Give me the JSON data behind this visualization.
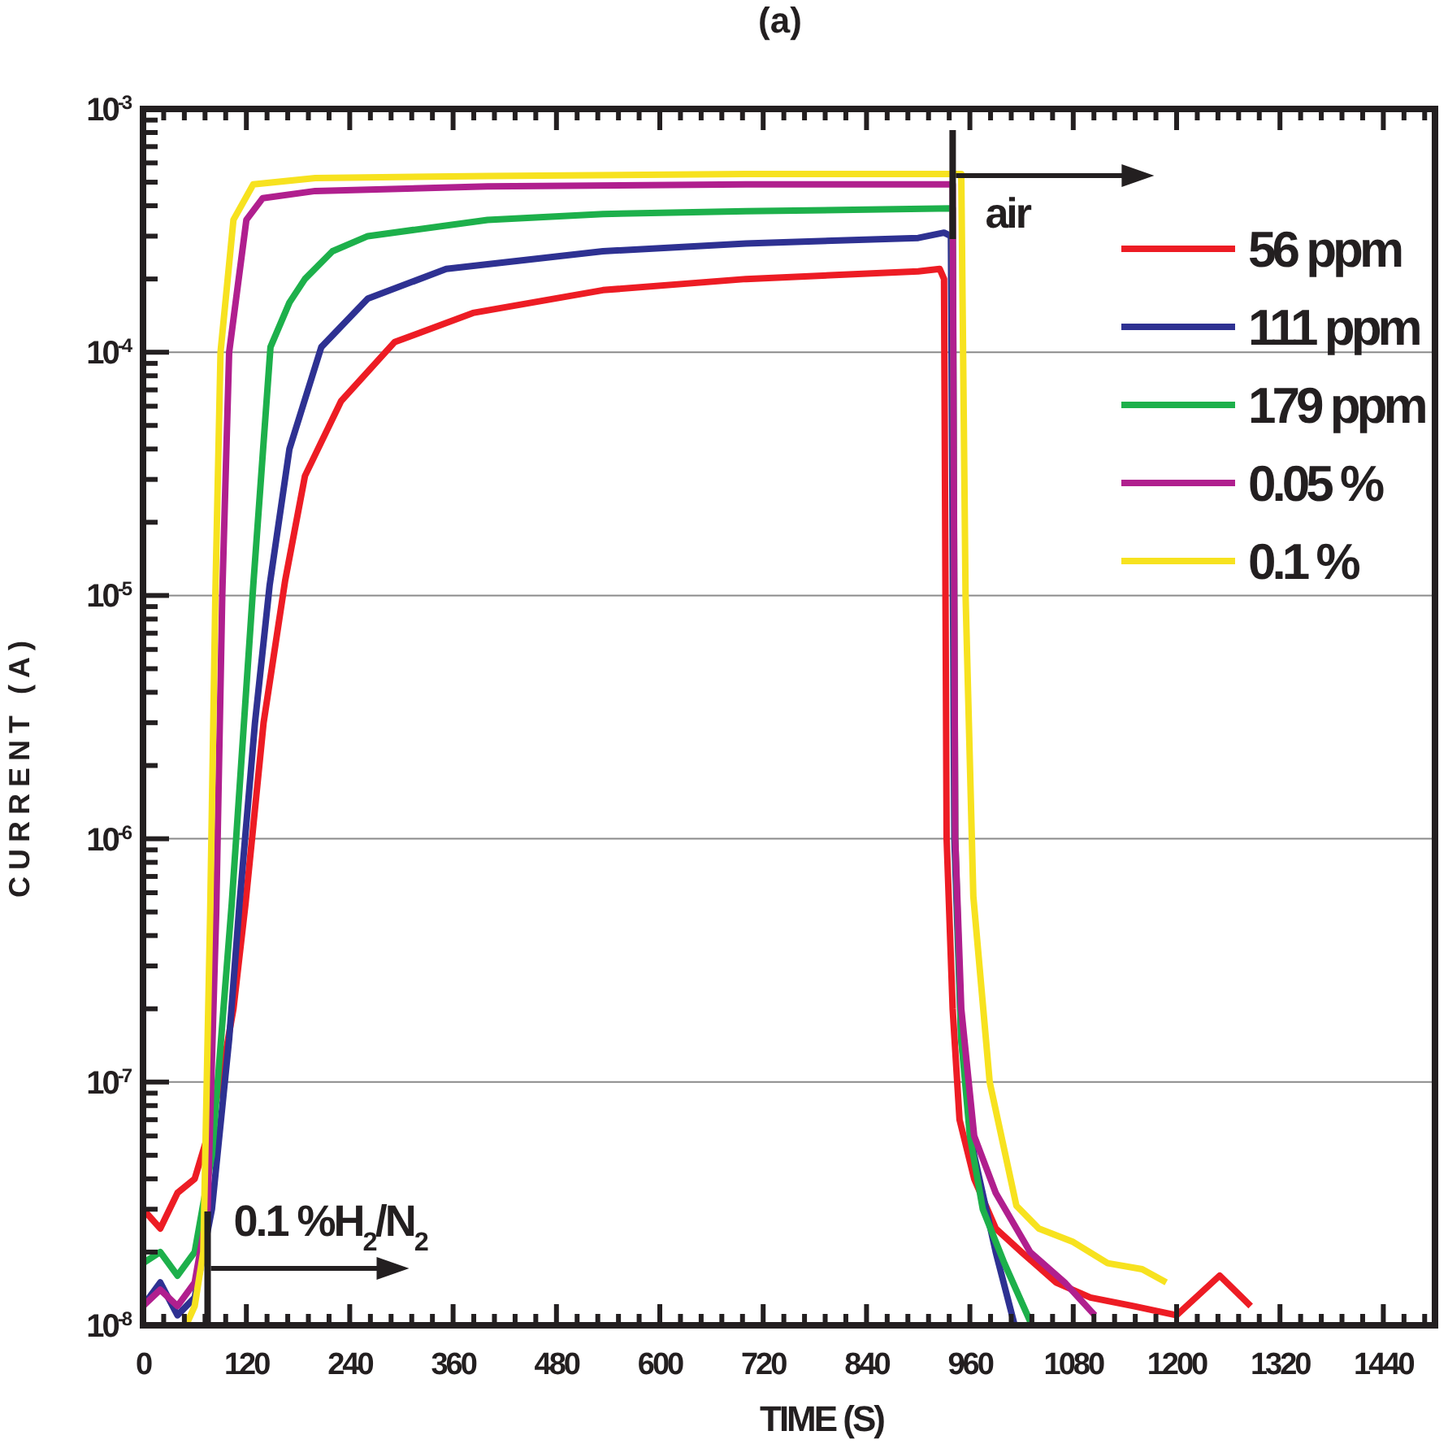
{
  "chart_data": {
    "type": "line",
    "title": "(a)",
    "xlabel": "TIME (S)",
    "ylabel": "CURRENT (A)",
    "log": "y",
    "grid": "y",
    "legend": "top right",
    "line_style": "solid",
    "marker": "none",
    "xlim": [
      0,
      1500
    ],
    "ylim": [
      1e-08,
      0.001
    ],
    "xticks": [
      0,
      {
        "value": 24,
        "label": null
      },
      {
        "value": 48,
        "label": null
      },
      {
        "value": 72,
        "label": null
      },
      {
        "value": 96,
        "label": null
      },
      120,
      {
        "value": 144,
        "label": null
      },
      {
        "value": 168,
        "label": null
      },
      {
        "value": 192,
        "label": null
      },
      {
        "value": 216,
        "label": null
      },
      240,
      {
        "value": 264,
        "label": null
      },
      {
        "value": 288,
        "label": null
      },
      {
        "value": 312,
        "label": null
      },
      {
        "value": 336,
        "label": null
      },
      360,
      {
        "value": 384,
        "label": null
      },
      {
        "value": 408,
        "label": null
      },
      {
        "value": 432,
        "label": null
      },
      {
        "value": 456,
        "label": null
      },
      480,
      {
        "value": 504,
        "label": null
      },
      {
        "value": 528,
        "label": null
      },
      {
        "value": 552,
        "label": null
      },
      {
        "value": 576,
        "label": null
      },
      600,
      {
        "value": 624,
        "label": null
      },
      {
        "value": 648,
        "label": null
      },
      {
        "value": 672,
        "label": null
      },
      {
        "value": 696,
        "label": null
      },
      720,
      {
        "value": 744,
        "label": null
      },
      {
        "value": 768,
        "label": null
      },
      {
        "value": 792,
        "label": null
      },
      {
        "value": 816,
        "label": null
      },
      840,
      {
        "value": 864,
        "label": null
      },
      {
        "value": 888,
        "label": null
      },
      {
        "value": 912,
        "label": null
      },
      {
        "value": 936,
        "label": null
      },
      960,
      {
        "value": 984,
        "label": null
      },
      {
        "value": 1008,
        "label": null
      },
      {
        "value": 1032,
        "label": null
      },
      {
        "value": 1056,
        "label": null
      },
      1080,
      {
        "value": 1104,
        "label": null
      },
      {
        "value": 1128,
        "label": null
      },
      {
        "value": 1152,
        "label": null
      },
      {
        "value": 1176,
        "label": null
      },
      1200,
      {
        "value": 1224,
        "label": null
      },
      {
        "value": 1248,
        "label": null
      },
      {
        "value": 1272,
        "label": null
      },
      {
        "value": 1296,
        "label": null
      },
      1320,
      {
        "value": 1344,
        "label": null
      },
      {
        "value": 1368,
        "label": null
      },
      {
        "value": 1392,
        "label": null
      },
      {
        "value": 1416,
        "label": null
      },
      1440,
      {
        "value": 1464,
        "label": null
      },
      {
        "value": 1488,
        "label": null
      }
    ],
    "yticks": [
      {
        "value": 1e-08,
        "label": "10$^{-8}$"
      },
      {
        "value": 2e-08,
        "label": null
      },
      {
        "value": 3e-08,
        "label": null
      },
      {
        "value": 4e-08,
        "label": null
      },
      {
        "value": 5e-08,
        "label": null
      },
      {
        "value": 6e-08,
        "label": null
      },
      {
        "value": 7e-08,
        "label": null
      },
      {
        "value": 8e-08,
        "label": null
      },
      {
        "value": 9e-08,
        "label": null
      },
      {
        "value": 1e-07,
        "label": "10$^{-7}$"
      },
      {
        "value": 2e-07,
        "label": null
      },
      {
        "value": 3e-07,
        "label": null
      },
      {
        "value": 4e-07,
        "label": null
      },
      {
        "value": 5e-07,
        "label": null
      },
      {
        "value": 6e-07,
        "label": null
      },
      {
        "value": 7e-07,
        "label": null
      },
      {
        "value": 8e-07,
        "label": null
      },
      {
        "value": 9e-07,
        "label": null
      },
      {
        "value": 1e-06,
        "label": "10$^{-6}$"
      },
      {
        "value": 2e-06,
        "label": null
      },
      {
        "value": 3e-06,
        "label": null
      },
      {
        "value": 4e-06,
        "label": null
      },
      {
        "value": 5e-06,
        "label": null
      },
      {
        "value": 6e-06,
        "label": null
      },
      {
        "value": 7e-06,
        "label": null
      },
      {
        "value": 8e-06,
        "label": null
      },
      {
        "value": 9e-06,
        "label": null
      },
      {
        "value": 1e-05,
        "label": "10$^{-5}$"
      },
      {
        "value": 2e-05,
        "label": null
      },
      {
        "value": 3e-05,
        "label": null
      },
      {
        "value": 4e-05,
        "label": null
      },
      {
        "value": 5e-05,
        "label": null
      },
      {
        "value": 6e-05,
        "label": null
      },
      {
        "value": 7e-05,
        "label": null
      },
      {
        "value": 8e-05,
        "label": null
      },
      {
        "value": 9e-05,
        "label": null
      },
      {
        "value": 0.0001,
        "label": "10$^{-4}$"
      },
      {
        "value": 0.0002,
        "label": null
      },
      {
        "value": 0.0003,
        "label": null
      },
      {
        "value": 0.0004,
        "label": null
      },
      {
        "value": 0.0005,
        "label": null
      },
      {
        "value": 0.0006,
        "label": null
      },
      {
        "value": 0.0007,
        "label": null
      },
      {
        "value": 0.0008,
        "label": null
      },
      {
        "value": 0.0009,
        "label": null
      },
      {
        "value": 0.001,
        "label": "10$^{-3}$"
      }
    ],
    "ref_lines": [
      {
        "axis": "x",
        "value": 940,
        "label": "air",
        "color": "#231f20"
      },
      {
        "axis": "x",
        "value": 75,
        "label": "0.1 %H$_{2}$/N$_{2}$",
        "color": "#231f20"
      }
    ],
    "series": [
      {
        "name": "56 ppm",
        "color": "#ed1c24",
        "x": [
          0,
          20,
          40,
          60,
          75,
          90,
          105,
          119,
          140,
          165,
          188,
          230,
          292,
          383,
          534,
          700,
          900,
          925,
          930,
          933,
          940,
          948,
          965,
          990,
          1020,
          1060,
          1100,
          1150,
          1200,
          1250,
          1286
        ],
        "values": [
          3e-08,
          2.5e-08,
          3.5e-08,
          4e-08,
          6e-08,
          1e-07,
          2e-07,
          5.4e-07,
          3e-06,
          1.15e-05,
          3.1e-05,
          6.3e-05,
          0.00011,
          0.000145,
          0.00018,
          0.0002,
          0.000215,
          0.00022,
          0.0002,
          1e-06,
          2e-07,
          7e-08,
          4e-08,
          2.5e-08,
          2e-08,
          1.5e-08,
          1.3e-08,
          1.2e-08,
          1.1e-08,
          1.6e-08,
          1.2e-08
        ]
      },
      {
        "name": "111 ppm",
        "color": "#2e3192",
        "x": [
          0,
          20,
          40,
          60,
          80,
          100,
          112,
          130,
          147,
          170,
          207,
          261,
          352,
          534,
          700,
          900,
          930,
          938,
          942,
          950,
          965,
          990,
          1012
        ],
        "values": [
          1.2e-08,
          1.5e-08,
          1.1e-08,
          1.3e-08,
          3e-08,
          1.5e-07,
          5.4e-07,
          3e-06,
          1.1e-05,
          4e-05,
          0.000105,
          0.000166,
          0.00022,
          0.00026,
          0.00028,
          0.000295,
          0.00031,
          0.0003,
          1e-06,
          1.5e-07,
          5e-08,
          2e-08,
          1e-08
        ]
      },
      {
        "name": "179 ppm",
        "color": "#1db04b",
        "x": [
          0,
          20,
          40,
          60,
          80,
          103,
          128,
          148,
          170,
          188,
          220,
          261,
          400,
          534,
          700,
          940,
          943,
          950,
          960,
          975,
          1000,
          1032
        ],
        "values": [
          1.8e-08,
          2e-08,
          1.6e-08,
          2e-08,
          5e-08,
          5.4e-07,
          1.1e-05,
          0.000105,
          0.00016,
          0.0002,
          0.00026,
          0.0003,
          0.00035,
          0.00037,
          0.00038,
          0.00039,
          1e-06,
          1.5e-07,
          6e-08,
          3e-08,
          1.8e-08,
          1e-08
        ]
      },
      {
        "name": "0.05 %",
        "color": "#b01f8e",
        "x": [
          0,
          20,
          40,
          60,
          75,
          85,
          92,
          100,
          120,
          139,
          200,
          400,
          700,
          940,
          943,
          950,
          965,
          990,
          1030,
          1070,
          1105
        ],
        "values": [
          1.2e-08,
          1.4e-08,
          1.2e-08,
          1.5e-08,
          3e-08,
          5e-07,
          1e-05,
          0.0001,
          0.00035,
          0.00043,
          0.00046,
          0.00048,
          0.00049,
          0.00049,
          1e-06,
          2e-07,
          6e-08,
          3.5e-08,
          2e-08,
          1.5e-08,
          1.1e-08
        ]
      },
      {
        "name": "0.1 %",
        "color": "#f7e21f",
        "x": [
          50,
          60,
          70,
          78,
          84,
          90,
          105,
          128,
          200,
          400,
          700,
          950,
          955,
          964,
          983,
          1014,
          1040,
          1080,
          1120,
          1160,
          1188
        ],
        "values": [
          1e-08,
          1.2e-08,
          2e-08,
          5e-07,
          1e-05,
          0.0001,
          0.00035,
          0.00049,
          0.00052,
          0.00053,
          0.00054,
          0.00054,
          1e-05,
          5.8e-07,
          1e-07,
          3.1e-08,
          2.5e-08,
          2.2e-08,
          1.8e-08,
          1.7e-08,
          1.5e-08
        ]
      }
    ]
  }
}
